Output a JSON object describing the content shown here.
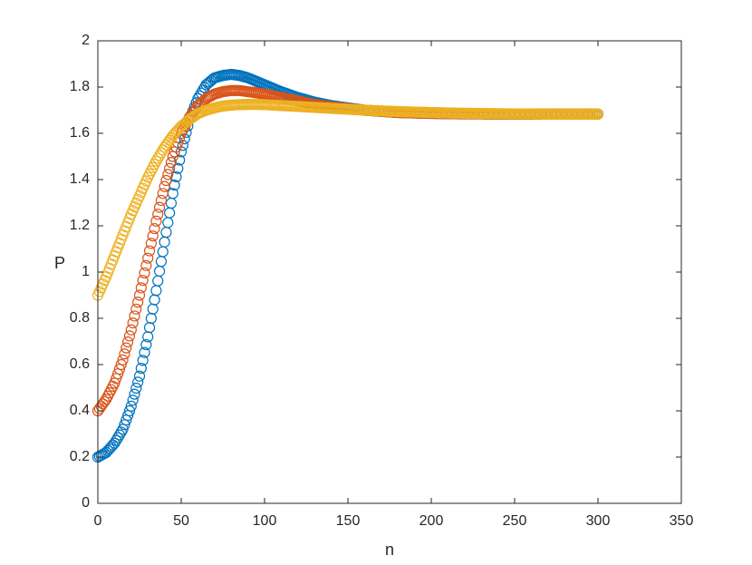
{
  "chart_data": {
    "type": "scatter",
    "marker": "circle-open",
    "xlabel": "n",
    "ylabel": "P",
    "xlim": [
      0,
      350
    ],
    "ylim": [
      0,
      2
    ],
    "xticks": [
      0,
      50,
      100,
      150,
      200,
      250,
      300,
      350
    ],
    "yticks": [
      0,
      0.2,
      0.4,
      0.6,
      0.8,
      1,
      1.2,
      1.4,
      1.6,
      1.8,
      2
    ],
    "xtick_labels": [
      "0",
      "50",
      "100",
      "150",
      "200",
      "250",
      "300",
      "350"
    ],
    "ytick_labels": [
      "0",
      "0.2",
      "0.4",
      "0.6",
      "0.8",
      "1",
      "1.2",
      "1.4",
      "1.6",
      "1.8",
      "2"
    ],
    "grid": false,
    "box": true,
    "legend": null,
    "series": [
      {
        "color": "#0072BD",
        "x": [
          0,
          5,
          10,
          15,
          20,
          25,
          30,
          35,
          40,
          45,
          50,
          55,
          60,
          65,
          70,
          75,
          80,
          85,
          90,
          95,
          100,
          110,
          120,
          130,
          140,
          150,
          160,
          170,
          180,
          190,
          200,
          210,
          220,
          230,
          240,
          250,
          260,
          270,
          280,
          290,
          300
        ],
        "values": [
          0.2,
          0.22,
          0.26,
          0.32,
          0.42,
          0.55,
          0.72,
          0.92,
          1.13,
          1.34,
          1.52,
          1.66,
          1.75,
          1.81,
          1.84,
          1.85,
          1.855,
          1.85,
          1.84,
          1.825,
          1.81,
          1.78,
          1.755,
          1.735,
          1.72,
          1.71,
          1.7,
          1.695,
          1.69,
          1.688,
          1.686,
          1.685,
          1.684,
          1.684,
          1.683,
          1.683,
          1.683,
          1.683,
          1.683,
          1.683,
          1.683
        ]
      },
      {
        "color": "#D95319",
        "x": [
          0,
          5,
          10,
          15,
          20,
          25,
          30,
          35,
          40,
          45,
          50,
          55,
          60,
          65,
          70,
          75,
          80,
          85,
          90,
          95,
          100,
          110,
          120,
          130,
          140,
          150,
          160,
          170,
          180,
          190,
          200,
          210,
          220,
          230,
          240,
          250,
          260,
          270,
          280,
          290,
          300
        ],
        "values": [
          0.4,
          0.45,
          0.52,
          0.62,
          0.75,
          0.9,
          1.06,
          1.22,
          1.37,
          1.5,
          1.6,
          1.67,
          1.72,
          1.75,
          1.77,
          1.78,
          1.785,
          1.785,
          1.78,
          1.775,
          1.77,
          1.755,
          1.74,
          1.725,
          1.715,
          1.707,
          1.7,
          1.695,
          1.69,
          1.688,
          1.686,
          1.685,
          1.684,
          1.684,
          1.683,
          1.683,
          1.683,
          1.683,
          1.683,
          1.683,
          1.683
        ]
      },
      {
        "color": "#EDB120",
        "x": [
          0,
          5,
          10,
          15,
          20,
          25,
          30,
          35,
          40,
          45,
          50,
          55,
          60,
          65,
          70,
          75,
          80,
          85,
          90,
          95,
          100,
          110,
          120,
          130,
          140,
          150,
          160,
          170,
          180,
          190,
          200,
          210,
          220,
          230,
          240,
          250,
          260,
          270,
          280,
          290,
          300
        ],
        "values": [
          0.9,
          0.98,
          1.07,
          1.16,
          1.25,
          1.33,
          1.41,
          1.48,
          1.54,
          1.59,
          1.63,
          1.66,
          1.685,
          1.7,
          1.71,
          1.718,
          1.722,
          1.724,
          1.725,
          1.725,
          1.724,
          1.72,
          1.716,
          1.712,
          1.708,
          1.704,
          1.7,
          1.697,
          1.694,
          1.692,
          1.69,
          1.688,
          1.687,
          1.686,
          1.685,
          1.684,
          1.684,
          1.683,
          1.683,
          1.683,
          1.683
        ]
      }
    ]
  }
}
